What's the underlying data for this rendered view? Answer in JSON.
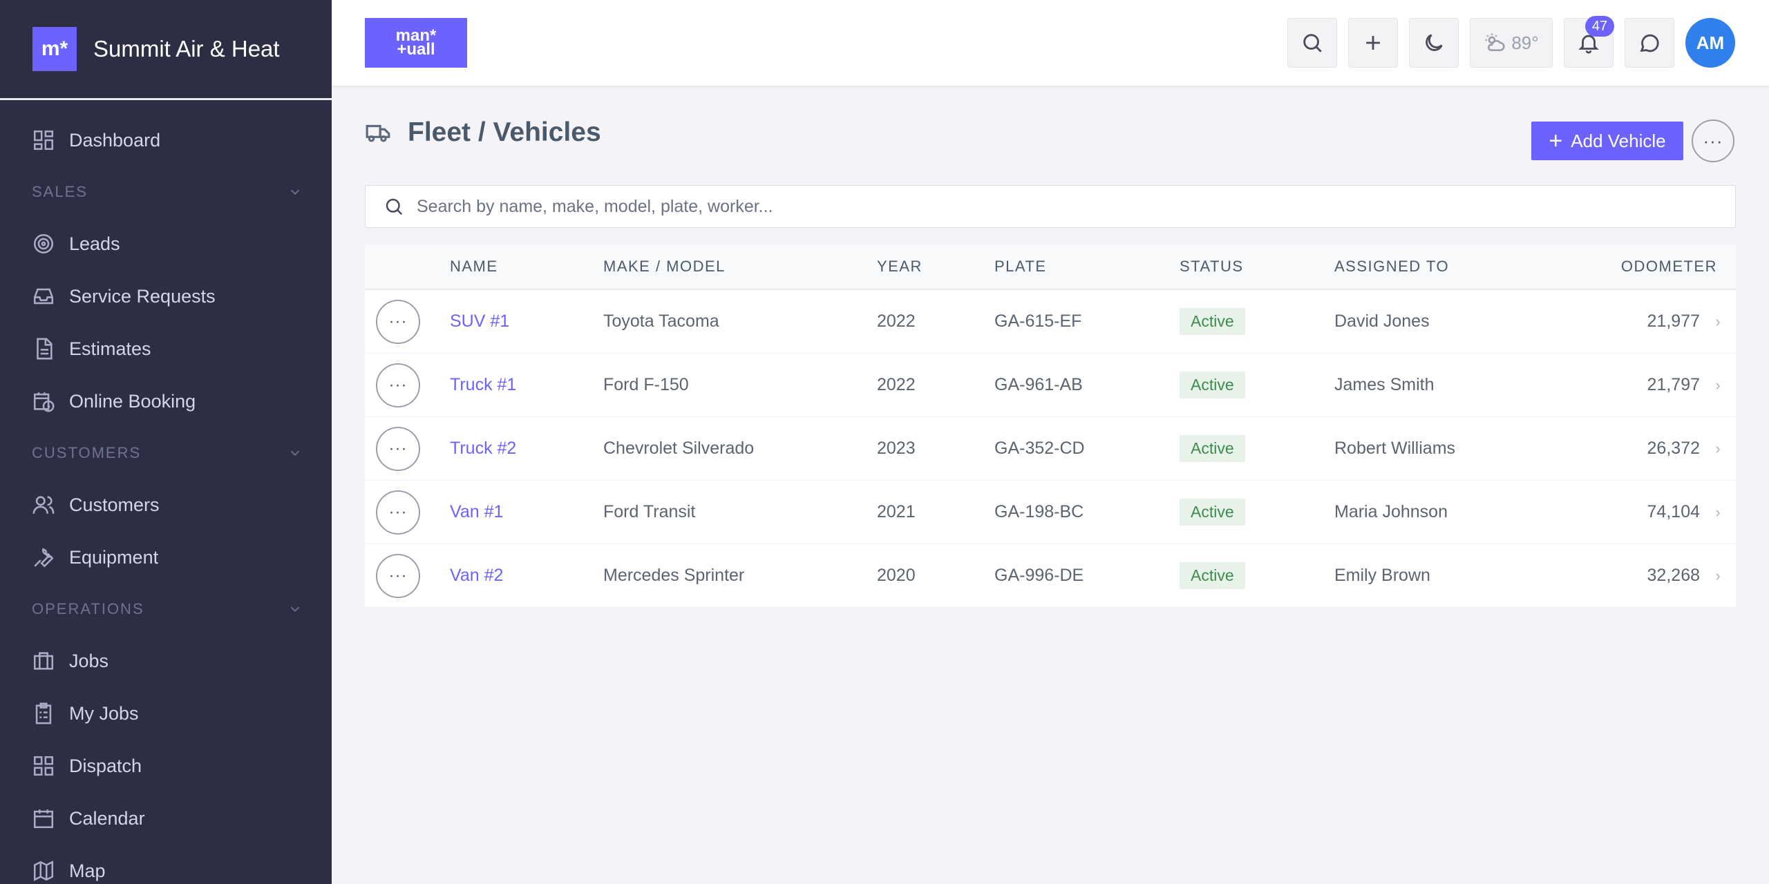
{
  "brand": {
    "logo_text": "m*",
    "name": "Summit Air & Heat"
  },
  "nav": {
    "dashboard": "Dashboard",
    "sales_section": "SALES",
    "leads": "Leads",
    "service_requests": "Service Requests",
    "estimates": "Estimates",
    "online_booking": "Online Booking",
    "customers_section": "CUSTOMERS",
    "customers": "Customers",
    "equipment": "Equipment",
    "operations_section": "OPERATIONS",
    "jobs": "Jobs",
    "my_jobs": "My Jobs",
    "dispatch": "Dispatch",
    "calendar": "Calendar",
    "map": "Map"
  },
  "topbar": {
    "logo_line1": "man*",
    "logo_line2": "+uall",
    "weather": "89°",
    "notifications_count": "47",
    "avatar_initials": "AM"
  },
  "page": {
    "title": "Fleet / Vehicles",
    "add_button": "Add Vehicle",
    "more_label": "···"
  },
  "search": {
    "placeholder": "Search by name, make, model, plate, worker..."
  },
  "table": {
    "headers": [
      "NAME",
      "MAKE / MODEL",
      "YEAR",
      "PLATE",
      "STATUS",
      "ASSIGNED TO",
      "ODOMETER"
    ],
    "rows": [
      {
        "name": "SUV #1",
        "make_model": "Toyota Tacoma",
        "year": "2022",
        "plate": "GA-615-EF",
        "status": "Active",
        "assigned_to": "David Jones",
        "odometer": "21,977"
      },
      {
        "name": "Truck #1",
        "make_model": "Ford F-150",
        "year": "2022",
        "plate": "GA-961-AB",
        "status": "Active",
        "assigned_to": "James Smith",
        "odometer": "21,797"
      },
      {
        "name": "Truck #2",
        "make_model": "Chevrolet Silverado",
        "year": "2023",
        "plate": "GA-352-CD",
        "status": "Active",
        "assigned_to": "Robert Williams",
        "odometer": "26,372"
      },
      {
        "name": "Van #1",
        "make_model": "Ford Transit",
        "year": "2021",
        "plate": "GA-198-BC",
        "status": "Active",
        "assigned_to": "Maria Johnson",
        "odometer": "74,104"
      },
      {
        "name": "Van #2",
        "make_model": "Mercedes Sprinter",
        "year": "2020",
        "plate": "GA-996-DE",
        "status": "Active",
        "assigned_to": "Emily Brown",
        "odometer": "32,268"
      }
    ],
    "row_action_label": "···",
    "chevron": "›"
  },
  "colors": {
    "accent": "#6c63ff",
    "sidebar_bg": "#2d2d44",
    "status_active_bg": "#e7f3e9",
    "status_active_text": "#3e8b4f",
    "avatar_bg": "#2f80ed"
  }
}
